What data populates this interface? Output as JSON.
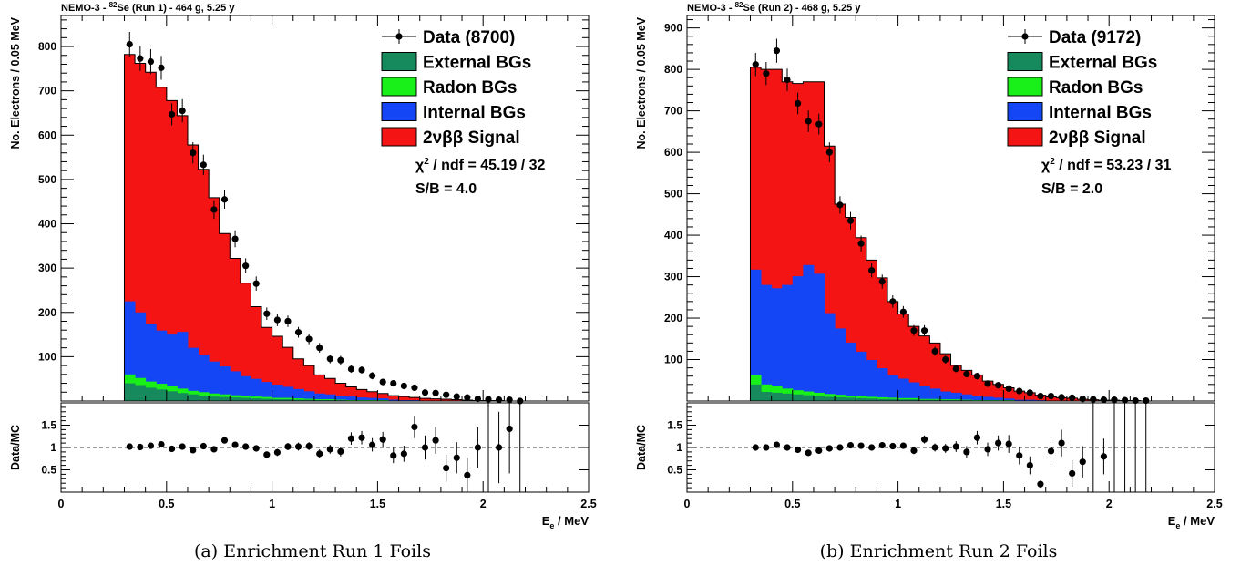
{
  "charts": [
    {
      "title_main": "NEMO-3 - ",
      "title_sup": "82",
      "title_rest": "Se (Run 1) - 464 g, 5.25 y",
      "ylabel": "No. Electrons / 0.05 MeV",
      "ratio_ylabel": "Data/MC",
      "xlabel_base": "E",
      "xlabel_sub": "e",
      "xlabel_rest": " / MeV",
      "legend": [
        {
          "label": "Data (8700)",
          "kind": "data"
        },
        {
          "label": "External BGs",
          "color": "#168a5c"
        },
        {
          "label": "Radon BGs",
          "color": "#19f019"
        },
        {
          "label": "Internal BGs",
          "color": "#1446f5"
        },
        {
          "label": "2νββ Signal",
          "color": "#f51414"
        }
      ],
      "stats": [
        {
          "pre": "χ",
          "sup": "2",
          "post": " / ndf = 45.19 / 32"
        },
        {
          "pre": "S/B = 4.0",
          "sup": "",
          "post": ""
        }
      ],
      "caption": "(a) Enrichment Run 1 Foils",
      "chart_data": {
        "type": "histogram-stack",
        "bin_width": 0.05,
        "x_start": 0.3,
        "xlim": [
          0,
          2.5
        ],
        "ylim": [
          0,
          870
        ],
        "ratio_ylim": [
          0,
          2
        ],
        "x_ticks": [
          "0",
          "0.5",
          "1",
          "1.5",
          "2",
          "2.5"
        ],
        "y_ticks": [
          100,
          200,
          300,
          400,
          500,
          600,
          700,
          800
        ],
        "ratio_ticks": [
          0.5,
          1,
          1.5
        ],
        "stack_order": [
          "External BGs",
          "Radon BGs",
          "Internal BGs",
          "2νββ Signal"
        ],
        "series": [
          {
            "name": "External BGs",
            "values": [
              40,
              36,
              30,
              26,
              22,
              18,
              15,
              12,
              10,
              9,
              8,
              7,
              6,
              5,
              4,
              4,
              3,
              3,
              2,
              2,
              2,
              1,
              1,
              1,
              1,
              0,
              0,
              0,
              0,
              0,
              0,
              0,
              0,
              0,
              0,
              0,
              0,
              0
            ]
          },
          {
            "name": "Radon BGs",
            "values": [
              20,
              16,
              14,
              13,
              11,
              10,
              8,
              8,
              7,
              6,
              5,
              5,
              4,
              4,
              3,
              3,
              3,
              2,
              2,
              2,
              1,
              1,
              1,
              1,
              1,
              0,
              0,
              0,
              0,
              0,
              0,
              0,
              0,
              0,
              0,
              0,
              0,
              0
            ]
          },
          {
            "name": "Internal BGs",
            "values": [
              165,
              148,
              130,
              120,
              117,
              128,
              97,
              85,
              72,
              63,
              54,
              44,
              40,
              34,
              30,
              25,
              21,
              17,
              13,
              11,
              9,
              8,
              6,
              5,
              4,
              3,
              2,
              2,
              1,
              1,
              1,
              1,
              0,
              0,
              0,
              0,
              0,
              0
            ]
          },
          {
            "name": "2νββ Signal",
            "values": [
              557,
              562,
              568,
              549,
              528,
              488,
              458,
              418,
              370,
              300,
              255,
              210,
              163,
              123,
              109,
              89,
              68,
              58,
              42,
              36,
              28,
              22,
              18,
              14,
              11,
              9,
              8,
              6,
              5,
              4,
              3,
              2,
              2,
              1,
              1,
              1,
              0,
              0
            ]
          }
        ],
        "data": {
          "name": "Data (8700)",
          "values": [
            805,
            773,
            766,
            752,
            647,
            655,
            560,
            533,
            432,
            455,
            366,
            305,
            265,
            197,
            183,
            180,
            155,
            140,
            120,
            95,
            92,
            72,
            70,
            57,
            43,
            40,
            34,
            30,
            19,
            18,
            14,
            10,
            8,
            5,
            4,
            3,
            3,
            0
          ],
          "errors": [
            28,
            28,
            28,
            27,
            25,
            26,
            24,
            23,
            21,
            21,
            19,
            17,
            16,
            14,
            14,
            13,
            12,
            12,
            11,
            10,
            10,
            8,
            8,
            8,
            7,
            6,
            6,
            5,
            4,
            4,
            4,
            3,
            3,
            2,
            2,
            2,
            2,
            0
          ]
        },
        "ratio": {
          "values": [
            1.02,
            1.01,
            1.04,
            1.07,
            0.97,
            1.02,
            0.94,
            1.03,
            0.96,
            1.16,
            1.06,
            1.02,
            0.98,
            0.84,
            0.89,
            1.02,
            1.02,
            1.03,
            0.86,
            0.96,
            0.91,
            1.2,
            1.22,
            1.06,
            1.18,
            0.82,
            0.86,
            1.46,
            1.0,
            1.16,
            0.54,
            0.77,
            0.38,
            1.0,
            null,
            1.0,
            1.42,
            null
          ],
          "errors": [
            0.04,
            0.04,
            0.04,
            0.04,
            0.04,
            0.04,
            0.04,
            0.05,
            0.05,
            0.05,
            0.06,
            0.06,
            0.07,
            0.07,
            0.08,
            0.08,
            0.09,
            0.09,
            0.1,
            0.1,
            0.11,
            0.14,
            0.15,
            0.15,
            0.17,
            0.17,
            0.18,
            0.25,
            0.27,
            0.3,
            0.3,
            0.35,
            0.4,
            0.45,
            null,
            0.8,
            1.0,
            null
          ]
        }
      }
    },
    {
      "title_main": "NEMO-3 - ",
      "title_sup": "82",
      "title_rest": "Se (Run 2) - 468 g, 5.25 y",
      "ylabel": "No. Electrons / 0.05 MeV",
      "ratio_ylabel": "Data/MC",
      "xlabel_base": "E",
      "xlabel_sub": "e",
      "xlabel_rest": " / MeV",
      "legend": [
        {
          "label": "Data (9172)",
          "kind": "data"
        },
        {
          "label": "External BGs",
          "color": "#168a5c"
        },
        {
          "label": "Radon BGs",
          "color": "#19f019"
        },
        {
          "label": "Internal BGs",
          "color": "#1446f5"
        },
        {
          "label": "2νββ Signal",
          "color": "#f51414"
        }
      ],
      "stats": [
        {
          "pre": "χ",
          "sup": "2",
          "post": " / ndf = 53.23 / 31"
        },
        {
          "pre": "S/B = 2.0",
          "sup": "",
          "post": ""
        }
      ],
      "caption": "(b) Enrichment Run 2 Foils",
      "chart_data": {
        "type": "histogram-stack",
        "bin_width": 0.05,
        "x_start": 0.3,
        "xlim": [
          0,
          2.5
        ],
        "ylim": [
          0,
          930
        ],
        "ratio_ylim": [
          0,
          2
        ],
        "x_ticks": [
          "0",
          "0.5",
          "1",
          "1.5",
          "2",
          "2.5"
        ],
        "y_ticks": [
          100,
          200,
          300,
          400,
          500,
          600,
          700,
          800,
          900
        ],
        "ratio_ticks": [
          0.5,
          1,
          1.5
        ],
        "stack_order": [
          "External BGs",
          "Radon BGs",
          "Internal BGs",
          "2νββ Signal"
        ],
        "series": [
          {
            "name": "External BGs",
            "values": [
              40,
              22,
              20,
              18,
              16,
              14,
              12,
              10,
              9,
              8,
              7,
              6,
              5,
              5,
              4,
              4,
              3,
              3,
              2,
              2,
              2,
              1,
              1,
              1,
              1,
              0,
              0,
              0,
              0,
              0,
              0,
              0,
              0,
              0,
              0,
              0,
              0,
              0
            ]
          },
          {
            "name": "Radon BGs",
            "values": [
              23,
              18,
              16,
              12,
              10,
              9,
              8,
              7,
              6,
              5,
              5,
              4,
              4,
              3,
              3,
              3,
              2,
              2,
              2,
              2,
              1,
              1,
              1,
              1,
              1,
              0,
              0,
              0,
              0,
              0,
              0,
              0,
              0,
              0,
              0,
              0,
              0,
              0
            ]
          },
          {
            "name": "Internal BGs",
            "values": [
              254,
              240,
              236,
              250,
              275,
              305,
              287,
              195,
              160,
              128,
              107,
              89,
              70,
              55,
              47,
              38,
              31,
              25,
              19,
              16,
              13,
              10,
              8,
              6,
              4,
              3,
              3,
              2,
              1,
              1,
              1,
              0,
              0,
              0,
              0,
              0,
              0,
              0
            ]
          },
          {
            "name": "2νββ Signal",
            "values": [
              488,
              520,
              528,
              490,
              465,
              442,
              463,
              403,
              300,
              302,
              275,
              241,
              218,
              177,
              156,
              135,
              121,
              110,
              91,
              66,
              58,
              51,
              38,
              32,
              26,
              21,
              17,
              12,
              9,
              7,
              6,
              4,
              3,
              2,
              2,
              1,
              1,
              0
            ]
          }
        ],
        "data": {
          "name": "Data (9172)",
          "values": [
            812,
            790,
            845,
            775,
            718,
            675,
            668,
            600,
            473,
            435,
            380,
            315,
            288,
            240,
            215,
            170,
            170,
            120,
            100,
            78,
            65,
            60,
            42,
            38,
            30,
            24,
            20,
            12,
            12,
            9,
            8,
            5,
            4,
            3,
            3,
            2,
            1,
            1
          ],
          "errors": [
            28,
            28,
            29,
            27,
            26,
            26,
            25,
            24,
            21,
            21,
            19,
            17,
            17,
            15,
            14,
            13,
            13,
            11,
            10,
            9,
            8,
            8,
            7,
            6,
            5,
            5,
            5,
            3,
            3,
            3,
            3,
            2,
            2,
            2,
            2,
            2,
            1,
            1
          ]
        },
        "ratio": {
          "values": [
            1.0,
            1.0,
            1.06,
            1.0,
            0.95,
            0.88,
            0.93,
            0.98,
            1.0,
            1.05,
            1.04,
            1.0,
            1.05,
            1.03,
            1.04,
            0.93,
            1.18,
            1.0,
            0.98,
            1.02,
            0.9,
            1.22,
            0.96,
            1.1,
            1.08,
            0.82,
            0.6,
            0.18,
            0.92,
            1.1,
            0.42,
            0.68,
            null,
            0.8,
            null,
            null,
            null,
            null
          ],
          "errors": [
            0.04,
            0.04,
            0.04,
            0.04,
            0.04,
            0.04,
            0.04,
            0.05,
            0.05,
            0.05,
            0.06,
            0.06,
            0.06,
            0.07,
            0.07,
            0.08,
            0.09,
            0.09,
            0.1,
            0.12,
            0.13,
            0.15,
            0.15,
            0.17,
            0.2,
            0.2,
            0.2,
            0.08,
            0.2,
            0.3,
            0.3,
            0.35,
            null,
            0.4,
            null,
            null,
            null,
            null
          ]
        }
      }
    }
  ]
}
